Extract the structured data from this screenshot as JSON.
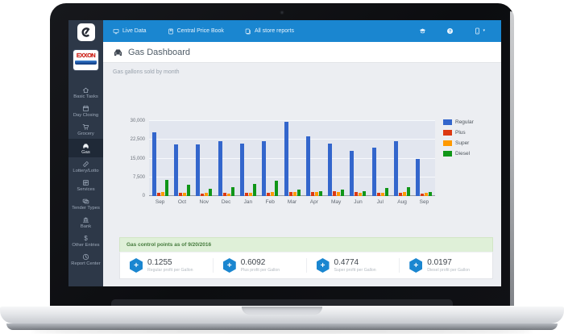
{
  "brand": {
    "logo_icon": "cstore-office-logo",
    "exxon_label": "EXXON"
  },
  "navbar": {
    "items": [
      {
        "label": "Live Data",
        "icon": "live-data-icon"
      },
      {
        "label": "Central Price Book",
        "icon": "price-book-icon"
      },
      {
        "label": "All store reports",
        "icon": "store-reports-icon"
      }
    ],
    "right_icons": [
      {
        "icon": "education-icon"
      },
      {
        "icon": "help-icon"
      },
      {
        "icon": "device-icon",
        "caret": "▾"
      }
    ]
  },
  "header": {
    "icon": "car-icon",
    "title": "Gas Dashboard"
  },
  "content": {
    "subtitle": "Gas gallons sold by month"
  },
  "sidebar": {
    "items": [
      {
        "label": "Basic Tasks",
        "icon": "home-icon",
        "active": false
      },
      {
        "label": "Day Closing",
        "icon": "calendar-icon",
        "active": false
      },
      {
        "label": "Grocery",
        "icon": "cart-icon",
        "active": false
      },
      {
        "label": "Gas",
        "icon": "car-icon",
        "active": true
      },
      {
        "label": "Lottery/Lotto",
        "icon": "ticket-icon",
        "active": false
      },
      {
        "label": "Services",
        "icon": "services-icon",
        "active": false
      },
      {
        "label": "Tender Types",
        "icon": "tender-icon",
        "active": false
      },
      {
        "label": "Bank",
        "icon": "bank-icon",
        "active": false
      },
      {
        "label": "Other Entries",
        "icon": "dollar-icon",
        "active": false
      },
      {
        "label": "Report Center",
        "icon": "clock-icon",
        "active": false
      }
    ]
  },
  "chart_data": {
    "type": "bar",
    "title": "Gas gallons sold by month",
    "categories": [
      "Sep",
      "Oct",
      "Nov",
      "Dec",
      "Jan",
      "Feb",
      "Mar",
      "Apr",
      "May",
      "Jun",
      "Jul",
      "Aug",
      "Sep"
    ],
    "series": [
      {
        "name": "Regular",
        "color": "#3366cc",
        "values": [
          25500,
          20800,
          20600,
          21800,
          21000,
          21800,
          29800,
          23800,
          21000,
          18100,
          19400,
          22000,
          15000
        ]
      },
      {
        "name": "Plus",
        "color": "#dc3912",
        "values": [
          1300,
          1300,
          1000,
          1300,
          1300,
          1400,
          1500,
          1500,
          1800,
          1700,
          1300,
          1400,
          1000
        ]
      },
      {
        "name": "Super",
        "color": "#ff9900",
        "values": [
          1500,
          1400,
          1200,
          1100,
          1300,
          1700,
          1500,
          1700,
          1500,
          1200,
          1400,
          1600,
          1200
        ]
      },
      {
        "name": "Diesel",
        "color": "#109618",
        "values": [
          6400,
          4400,
          3000,
          3400,
          4700,
          6100,
          2700,
          2000,
          2600,
          1800,
          3300,
          3700,
          1700
        ]
      }
    ],
    "ylim": [
      0,
      30000
    ],
    "yticks": [
      "0",
      "7,500",
      "15,000",
      "22,500",
      "30,000"
    ],
    "xlabel": "",
    "ylabel": "",
    "grid": true,
    "legend_position": "right"
  },
  "control_points": {
    "heading": "Gas control points as of 9/20/2016",
    "plus_glyph": "+",
    "cards": [
      {
        "value": "0.1255",
        "label": "Regular profit per Gallon"
      },
      {
        "value": "0.6092",
        "label": "Plus profit per Gallon"
      },
      {
        "value": "0.4774",
        "label": "Super profit per Gallon"
      },
      {
        "value": "0.0197",
        "label": "Diesel profit per Gallon"
      }
    ]
  },
  "colors": {
    "accent_blue": "#1a86d0",
    "sidebar_bg": "#2d3848",
    "panel_success_bg": "#dff0d8",
    "panel_success_text": "#447a3c",
    "plot_bg": "#e2e6ef"
  }
}
